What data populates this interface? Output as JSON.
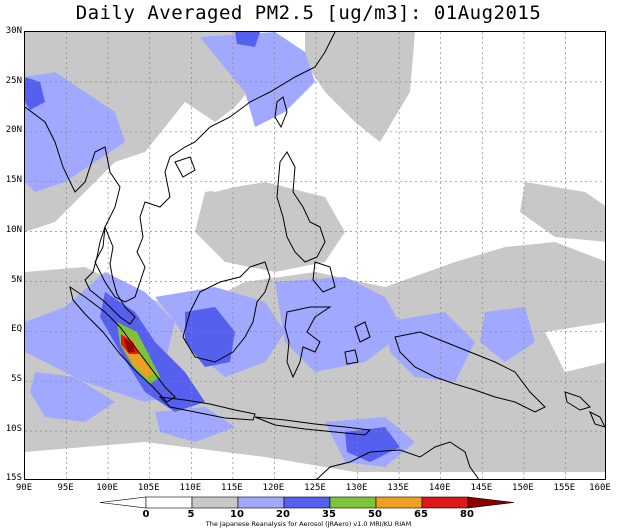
{
  "title": "Daily Averaged PM2.5 [ug/m3]: 01Aug2015",
  "lat_labels": [
    "30N",
    "25N",
    "20N",
    "15N",
    "10N",
    "5N",
    "EQ",
    "5S",
    "10S",
    "15S"
  ],
  "lon_labels": [
    "90E",
    "95E",
    "100E",
    "105E",
    "110E",
    "115E",
    "120E",
    "125E",
    "130E",
    "135E",
    "140E",
    "145E",
    "150E",
    "155E",
    "160E"
  ],
  "colorbar": {
    "levels": [
      "0",
      "5",
      "10",
      "20",
      "35",
      "50",
      "65",
      "80"
    ],
    "colors": [
      "#ffffff",
      "#ffffff",
      "#c8c8c8",
      "#a0a8ff",
      "#5560ee",
      "#7cc43a",
      "#f0a020",
      "#e01818",
      "#8b0000"
    ]
  },
  "credit": "The Japanese Reanalysis for Aerosol (JRAero) v1.0 MRI/KU RIAM"
}
